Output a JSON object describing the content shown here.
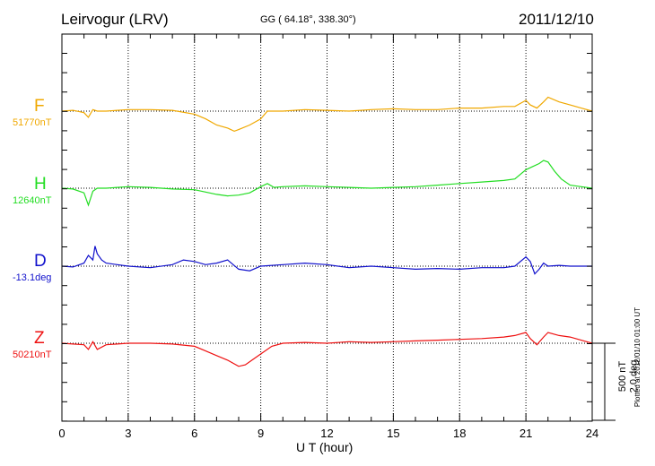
{
  "header": {
    "station": "Leirvogur (LRV)",
    "coords": "GG ( 64.18°, 338.30°)",
    "date": "2011/12/10"
  },
  "footer": {
    "plotted": "Plotted at 2012/01/10 01:00 UT"
  },
  "chart_data": {
    "type": "line",
    "xlabel": "U T (hour)",
    "xlim": [
      0,
      24
    ],
    "xticks": [
      "0",
      "3",
      "6",
      "9",
      "12",
      "15",
      "18",
      "21",
      "24"
    ],
    "scale": {
      "value_nt": "500 nT",
      "value_deg": "2.0 deg",
      "nt_per_band": 500
    },
    "grid": true,
    "series": [
      {
        "name": "F",
        "baseline": "51770nT",
        "color": "#f0a800",
        "x": [
          0,
          0.5,
          1.0,
          1.2,
          1.4,
          1.6,
          2.0,
          3.0,
          4.0,
          5.0,
          6.0,
          6.5,
          7.0,
          7.5,
          7.8,
          8.0,
          8.5,
          9.0,
          9.3,
          10.0,
          11.0,
          12.0,
          13.0,
          14.0,
          15.0,
          16.0,
          17.0,
          18.0,
          19.0,
          20.0,
          20.5,
          21.0,
          21.2,
          21.5,
          21.8,
          22.0,
          22.5,
          23.0,
          23.5,
          24.0
        ],
        "values": [
          0,
          5,
          -10,
          -40,
          10,
          0,
          0,
          10,
          10,
          5,
          -20,
          -50,
          -90,
          -110,
          -130,
          -120,
          -90,
          -50,
          0,
          0,
          10,
          5,
          0,
          10,
          15,
          10,
          10,
          20,
          20,
          30,
          30,
          70,
          40,
          20,
          60,
          90,
          60,
          40,
          20,
          0
        ]
      },
      {
        "name": "H",
        "baseline": "12640nT",
        "color": "#22dd22",
        "x": [
          0,
          0.5,
          1.0,
          1.2,
          1.4,
          1.6,
          2.0,
          3.0,
          4.0,
          5.0,
          6.0,
          6.5,
          7.0,
          7.5,
          8.0,
          8.5,
          9.0,
          9.3,
          9.6,
          10.0,
          11.0,
          12.0,
          13.0,
          14.0,
          15.0,
          16.0,
          17.0,
          18.0,
          19.0,
          20.0,
          20.5,
          21.0,
          21.3,
          21.6,
          21.8,
          22.0,
          22.3,
          22.6,
          23.0,
          23.5,
          24.0
        ],
        "values": [
          0,
          -5,
          -30,
          -110,
          -20,
          0,
          0,
          10,
          5,
          -5,
          -10,
          -25,
          -40,
          -50,
          -45,
          -30,
          10,
          30,
          5,
          10,
          15,
          10,
          5,
          0,
          5,
          10,
          20,
          30,
          40,
          50,
          60,
          120,
          140,
          160,
          180,
          170,
          110,
          60,
          20,
          10,
          0
        ]
      },
      {
        "name": "D",
        "baseline": "-13.1deg",
        "color": "#1111cc",
        "x": [
          0,
          0.5,
          1.0,
          1.2,
          1.4,
          1.5,
          1.6,
          1.8,
          2.0,
          3.0,
          4.0,
          5.0,
          5.5,
          6.0,
          6.5,
          7.0,
          7.5,
          8.0,
          8.5,
          9.0,
          10.0,
          11.0,
          12.0,
          13.0,
          14.0,
          15.0,
          16.0,
          17.0,
          18.0,
          19.0,
          20.0,
          20.5,
          21.0,
          21.2,
          21.4,
          21.6,
          21.8,
          22.0,
          22.5,
          23.0,
          24.0
        ],
        "values": [
          0,
          -5,
          20,
          70,
          40,
          130,
          80,
          40,
          20,
          0,
          -10,
          10,
          40,
          30,
          10,
          20,
          40,
          -20,
          -30,
          0,
          10,
          20,
          10,
          -10,
          0,
          -10,
          -20,
          -15,
          -20,
          -10,
          -10,
          0,
          60,
          30,
          -50,
          -20,
          20,
          0,
          5,
          0,
          0
        ]
      },
      {
        "name": "Z",
        "baseline": "50210nT",
        "color": "#ee1111",
        "x": [
          0,
          0.5,
          1.0,
          1.2,
          1.4,
          1.6,
          2.0,
          3.0,
          4.0,
          5.0,
          6.0,
          6.5,
          7.0,
          7.5,
          8.0,
          8.3,
          8.6,
          9.0,
          9.5,
          10.0,
          11.0,
          12.0,
          13.0,
          14.0,
          15.0,
          16.0,
          17.0,
          18.0,
          19.0,
          20.0,
          20.5,
          21.0,
          21.2,
          21.5,
          21.8,
          22.0,
          22.5,
          23.0,
          23.5,
          24.0
        ],
        "values": [
          0,
          -5,
          -10,
          -40,
          10,
          -40,
          -10,
          0,
          0,
          -5,
          -20,
          -50,
          -80,
          -110,
          -150,
          -140,
          -110,
          -70,
          -20,
          0,
          5,
          0,
          10,
          5,
          10,
          15,
          20,
          25,
          30,
          40,
          50,
          70,
          30,
          -10,
          40,
          70,
          50,
          40,
          20,
          0
        ]
      }
    ]
  }
}
